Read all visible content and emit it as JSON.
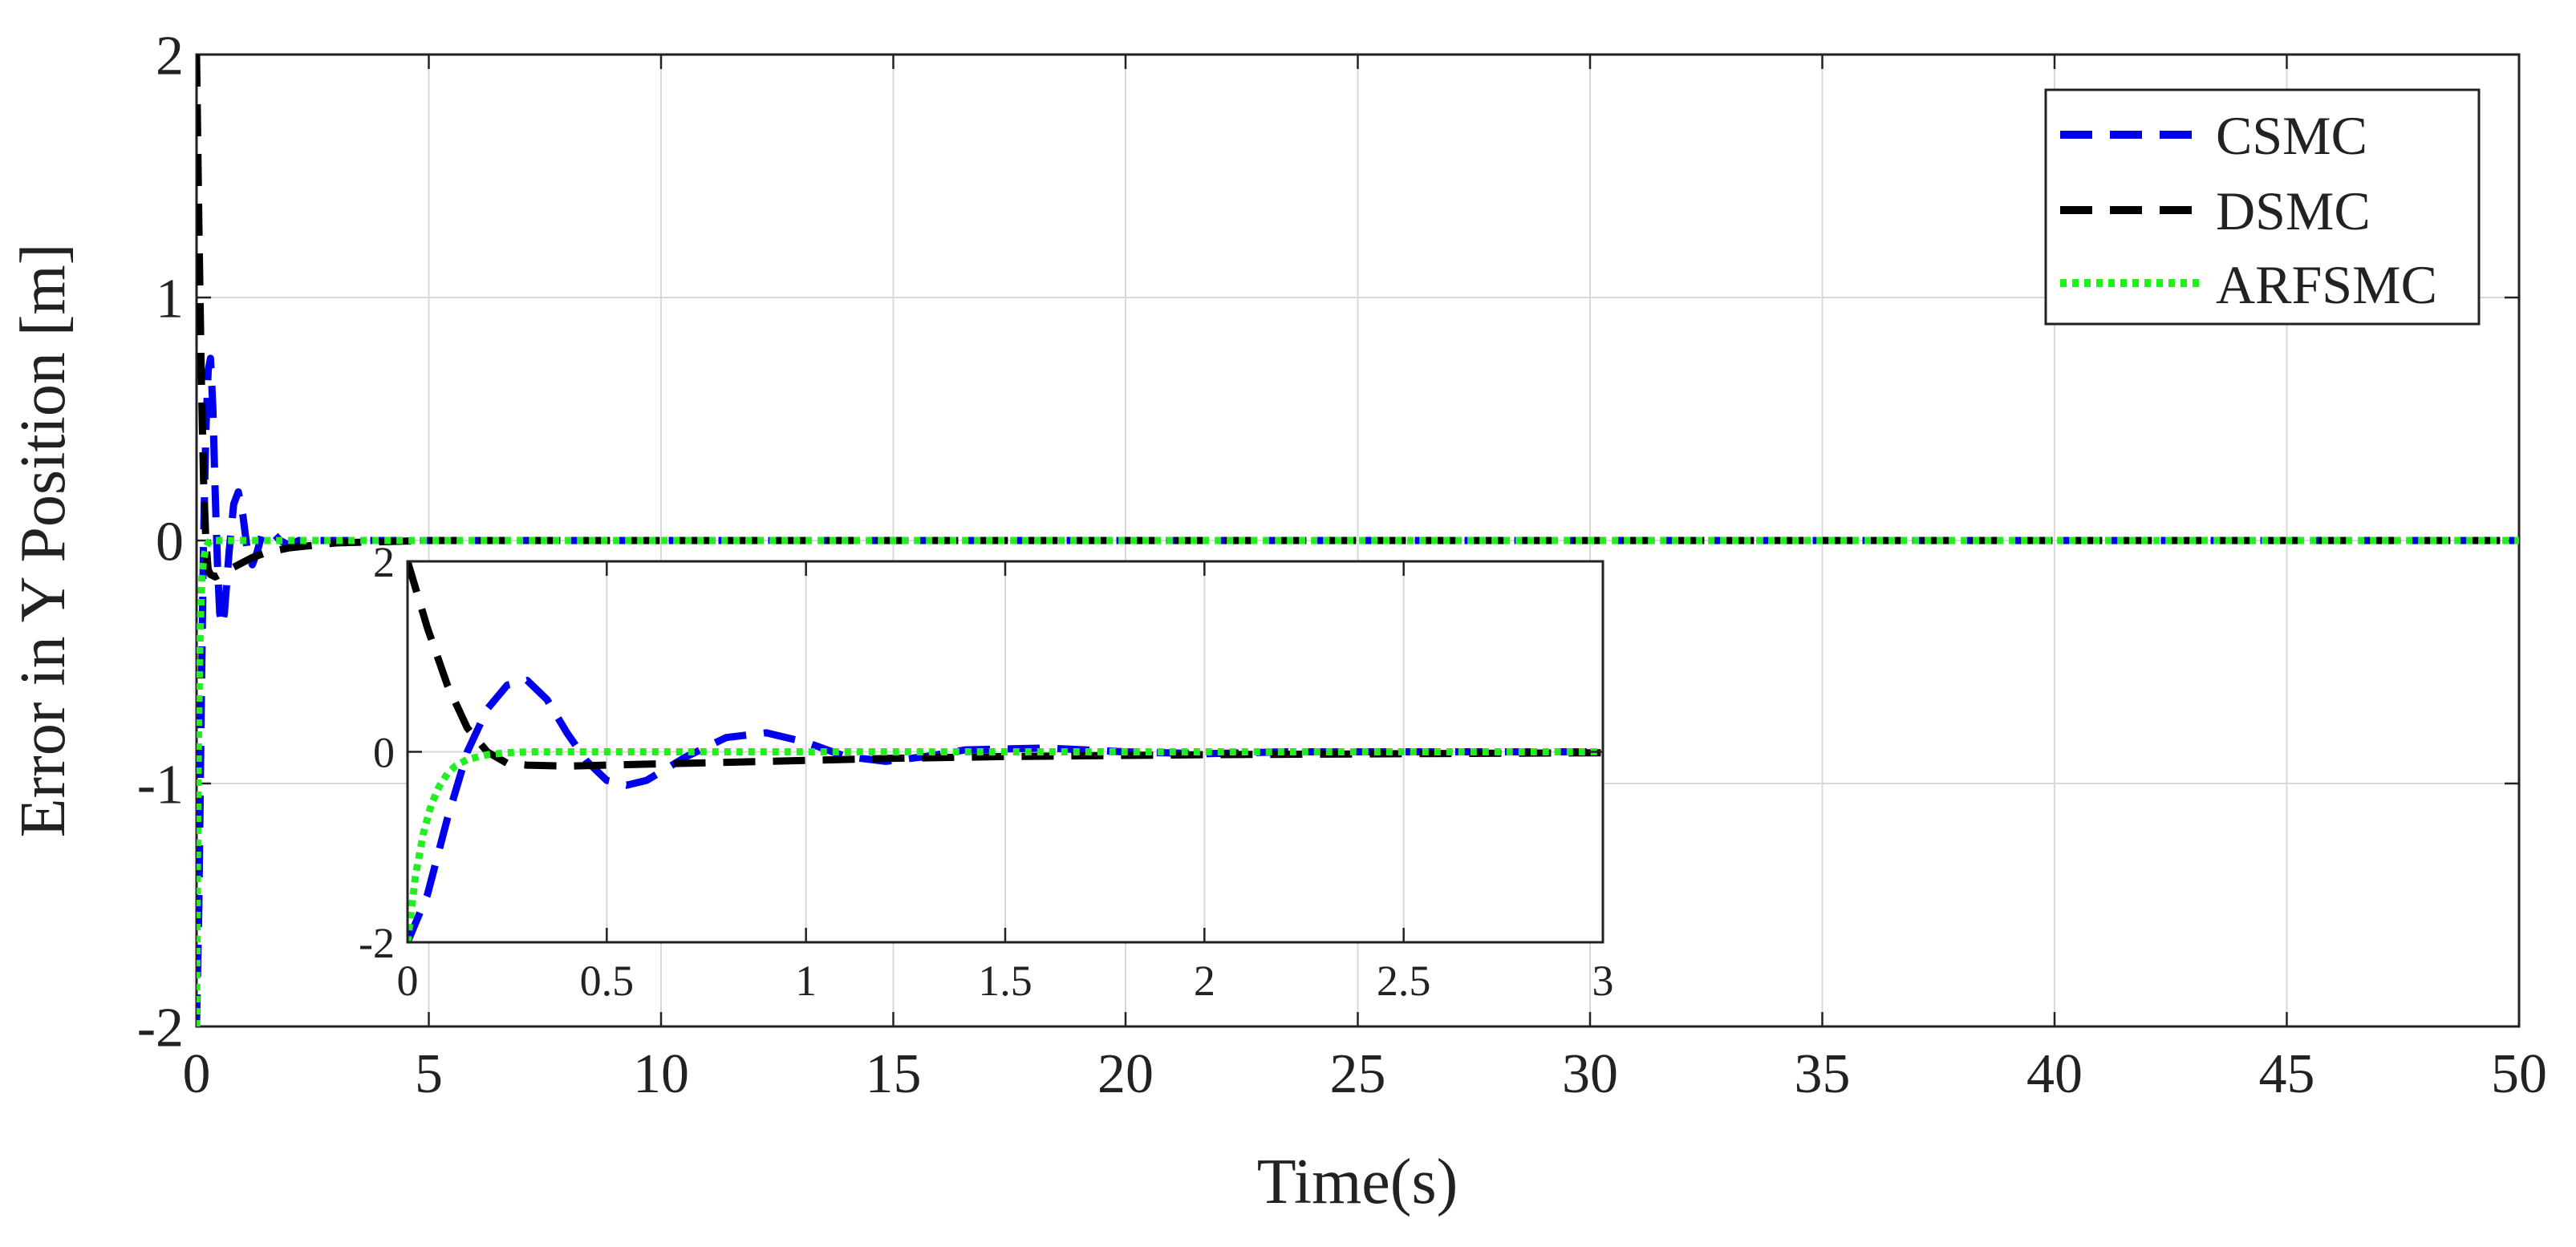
{
  "chart_data": [
    {
      "type": "line",
      "xlabel": "Time(s)",
      "ylabel": "Error in Y Position [m]",
      "xlim": [
        0,
        50
      ],
      "ylim": [
        -2,
        2
      ],
      "xticks": [
        0,
        5,
        10,
        15,
        20,
        25,
        30,
        35,
        40,
        45,
        50
      ],
      "xtick_labels": [
        "0",
        "5",
        "10",
        "15",
        "20",
        "25",
        "30",
        "35",
        "40",
        "45",
        "50"
      ],
      "yticks": [
        -2,
        -1,
        0,
        1,
        2
      ],
      "ytick_labels": [
        "-2",
        "-1",
        "0",
        "1",
        "2"
      ],
      "grid": true,
      "legend_position": "top-right",
      "series": [
        {
          "name": "CSMC",
          "color": "#0000ee",
          "style": "dashed",
          "x": [
            0,
            0.05,
            0.1,
            0.15,
            0.2,
            0.25,
            0.3,
            0.35,
            0.4,
            0.45,
            0.5,
            0.55,
            0.6,
            0.7,
            0.8,
            0.9,
            1.0,
            1.1,
            1.2,
            1.3,
            1.4,
            1.6,
            1.8,
            2.0,
            2.2,
            2.5,
            3.0,
            5,
            10,
            20,
            30,
            40,
            50
          ],
          "y": [
            -2.0,
            -1.5,
            -0.7,
            0.0,
            0.45,
            0.7,
            0.75,
            0.55,
            0.2,
            -0.1,
            -0.3,
            -0.35,
            -0.3,
            -0.05,
            0.15,
            0.2,
            0.1,
            -0.05,
            -0.1,
            -0.05,
            0.02,
            0.04,
            0.0,
            -0.02,
            0.0,
            0.0,
            0.0,
            0.0,
            0.0,
            0.0,
            0.0,
            0.0,
            0.0
          ]
        },
        {
          "name": "DSMC",
          "color": "#000000",
          "style": "dashed",
          "x": [
            0,
            0.05,
            0.1,
            0.15,
            0.2,
            0.25,
            0.3,
            0.4,
            0.5,
            0.6,
            0.8,
            1.0,
            1.2,
            1.5,
            2.0,
            2.5,
            3.0,
            5,
            10,
            20,
            30,
            40,
            50
          ],
          "y": [
            2.0,
            1.3,
            0.7,
            0.25,
            0.0,
            -0.12,
            -0.14,
            -0.15,
            -0.14,
            -0.13,
            -0.11,
            -0.09,
            -0.07,
            -0.05,
            -0.03,
            -0.02,
            -0.01,
            0.0,
            0.0,
            0.0,
            0.0,
            0.0,
            0.0
          ]
        },
        {
          "name": "ARFSMC",
          "color": "#22ee22",
          "style": "dotted",
          "x": [
            0,
            0.02,
            0.04,
            0.06,
            0.08,
            0.1,
            0.12,
            0.15,
            0.2,
            0.25,
            0.3,
            0.5,
            1.0,
            2.0,
            3.0,
            5,
            10,
            20,
            30,
            40,
            50
          ],
          "y": [
            -2.0,
            -1.3,
            -0.85,
            -0.55,
            -0.36,
            -0.23,
            -0.15,
            -0.08,
            -0.03,
            -0.01,
            0.0,
            0.0,
            0.0,
            0.0,
            0.0,
            0.0,
            0.0,
            0.0,
            0.0,
            0.0,
            0.0
          ]
        }
      ]
    },
    {
      "type": "line",
      "role": "inset",
      "xlim": [
        0,
        3
      ],
      "ylim": [
        -2,
        2
      ],
      "xticks": [
        0,
        0.5,
        1,
        1.5,
        2,
        2.5,
        3
      ],
      "xtick_labels": [
        "0",
        "0.5",
        "1",
        "1.5",
        "2",
        "2.5",
        "3"
      ],
      "yticks": [
        -2,
        0,
        2
      ],
      "ytick_labels": [
        "-2",
        "0",
        "2"
      ],
      "grid": true,
      "series_ref": "same as main chart series (CSMC, DSMC, ARFSMC)"
    }
  ]
}
